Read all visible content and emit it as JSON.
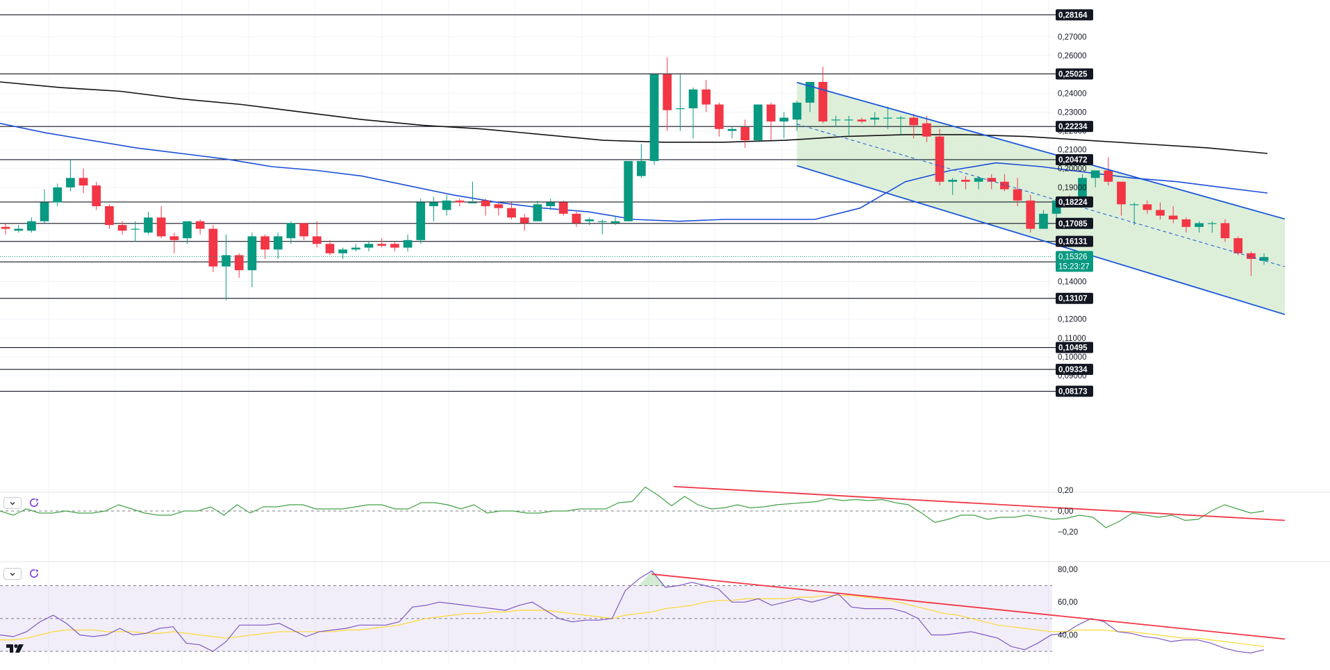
{
  "chart_data": [
    {
      "type": "candlestick",
      "ylim": [
        0.0775,
        0.2895
      ],
      "price_axis_ticks": [
        "0,27000",
        "0,26000",
        "0,24000",
        "0,23000",
        "0,22000",
        "0,21000",
        "0,20000",
        "0,19000",
        "0,14000",
        "0,12000",
        "0,11000",
        "0,10000",
        "0,09000"
      ],
      "levels": [
        {
          "value": 0.28164,
          "label": "0,28164"
        },
        {
          "value": 0.25025,
          "label": "0,25025"
        },
        {
          "value": 0.22234,
          "label": "0,22234"
        },
        {
          "value": 0.20472,
          "label": "0,20472"
        },
        {
          "value": 0.18224,
          "label": "0,18224"
        },
        {
          "value": 0.17085,
          "label": "0,17085"
        },
        {
          "value": 0.16131,
          "label": "0,16131"
        },
        {
          "value": 0.15045,
          "label": "0,15045"
        },
        {
          "value": 0.13107,
          "label": "0,13107"
        },
        {
          "value": 0.10495,
          "label": "0,10495"
        },
        {
          "value": 0.09334,
          "label": "0,09334"
        },
        {
          "value": 0.08173,
          "label": "0,08173"
        }
      ],
      "current_price": {
        "value": 0.15326,
        "label": "0,15326",
        "countdown": "15:23:27"
      },
      "candles": [
        [
          0.169,
          0.171,
          0.165,
          0.168
        ],
        [
          0.167,
          0.17,
          0.166,
          0.168
        ],
        [
          0.167,
          0.174,
          0.166,
          0.172
        ],
        [
          0.172,
          0.189,
          0.171,
          0.182
        ],
        [
          0.182,
          0.192,
          0.18,
          0.19
        ],
        [
          0.19,
          0.205,
          0.188,
          0.195
        ],
        [
          0.195,
          0.2,
          0.187,
          0.191
        ],
        [
          0.191,
          0.193,
          0.178,
          0.18
        ],
        [
          0.18,
          0.181,
          0.168,
          0.17
        ],
        [
          0.17,
          0.172,
          0.165,
          0.167
        ],
        [
          0.168,
          0.172,
          0.161,
          0.168
        ],
        [
          0.166,
          0.177,
          0.165,
          0.174
        ],
        [
          0.174,
          0.18,
          0.163,
          0.164
        ],
        [
          0.164,
          0.166,
          0.155,
          0.162
        ],
        [
          0.163,
          0.172,
          0.16,
          0.172
        ],
        [
          0.172,
          0.173,
          0.165,
          0.168
        ],
        [
          0.168,
          0.17,
          0.145,
          0.148
        ],
        [
          0.148,
          0.165,
          0.13,
          0.154
        ],
        [
          0.154,
          0.155,
          0.142,
          0.146
        ],
        [
          0.146,
          0.166,
          0.137,
          0.164
        ],
        [
          0.164,
          0.165,
          0.152,
          0.157
        ],
        [
          0.157,
          0.166,
          0.152,
          0.164
        ],
        [
          0.163,
          0.172,
          0.16,
          0.171
        ],
        [
          0.171,
          0.171,
          0.162,
          0.164
        ],
        [
          0.164,
          0.172,
          0.158,
          0.16
        ],
        [
          0.16,
          0.162,
          0.154,
          0.155
        ],
        [
          0.155,
          0.158,
          0.152,
          0.157
        ],
        [
          0.157,
          0.16,
          0.156,
          0.158
        ],
        [
          0.158,
          0.161,
          0.156,
          0.16
        ],
        [
          0.16,
          0.163,
          0.158,
          0.159
        ],
        [
          0.16,
          0.161,
          0.156,
          0.158
        ],
        [
          0.158,
          0.165,
          0.156,
          0.162
        ],
        [
          0.162,
          0.184,
          0.16,
          0.182
        ],
        [
          0.18,
          0.185,
          0.172,
          0.182
        ],
        [
          0.178,
          0.186,
          0.175,
          0.183
        ],
        [
          0.183,
          0.184,
          0.18,
          0.182
        ],
        [
          0.182,
          0.193,
          0.182,
          0.182
        ],
        [
          0.183,
          0.184,
          0.175,
          0.18
        ],
        [
          0.181,
          0.182,
          0.175,
          0.179
        ],
        [
          0.179,
          0.182,
          0.173,
          0.174
        ],
        [
          0.174,
          0.176,
          0.167,
          0.171
        ],
        [
          0.172,
          0.183,
          0.172,
          0.181
        ],
        [
          0.18,
          0.184,
          0.178,
          0.182
        ],
        [
          0.182,
          0.183,
          0.175,
          0.176
        ],
        [
          0.176,
          0.177,
          0.169,
          0.171
        ],
        [
          0.172,
          0.174,
          0.17,
          0.173
        ],
        [
          0.172,
          0.173,
          0.165,
          0.172
        ],
        [
          0.171,
          0.175,
          0.17,
          0.172
        ],
        [
          0.172,
          0.203,
          0.172,
          0.204
        ],
        [
          0.196,
          0.213,
          0.195,
          0.204
        ],
        [
          0.204,
          0.25,
          0.202,
          0.25
        ],
        [
          0.25,
          0.259,
          0.22,
          0.231
        ],
        [
          0.232,
          0.25,
          0.22,
          0.232
        ],
        [
          0.232,
          0.243,
          0.216,
          0.242
        ],
        [
          0.242,
          0.247,
          0.23,
          0.234
        ],
        [
          0.234,
          0.235,
          0.217,
          0.221
        ],
        [
          0.22,
          0.222,
          0.216,
          0.221
        ],
        [
          0.222,
          0.226,
          0.211,
          0.215
        ],
        [
          0.215,
          0.234,
          0.214,
          0.234
        ],
        [
          0.234,
          0.235,
          0.215,
          0.225
        ],
        [
          0.225,
          0.23,
          0.216,
          0.227
        ],
        [
          0.226,
          0.236,
          0.22,
          0.235
        ],
        [
          0.235,
          0.246,
          0.23,
          0.246
        ],
        [
          0.246,
          0.254,
          0.224,
          0.225
        ],
        [
          0.226,
          0.228,
          0.222,
          0.226
        ],
        [
          0.226,
          0.228,
          0.217,
          0.226
        ],
        [
          0.226,
          0.227,
          0.224,
          0.225
        ],
        [
          0.226,
          0.23,
          0.223,
          0.227
        ],
        [
          0.227,
          0.233,
          0.221,
          0.227
        ],
        [
          0.227,
          0.228,
          0.218,
          0.227
        ],
        [
          0.227,
          0.229,
          0.216,
          0.223
        ],
        [
          0.224,
          0.228,
          0.214,
          0.217
        ],
        [
          0.217,
          0.221,
          0.191,
          0.193
        ],
        [
          0.193,
          0.195,
          0.186,
          0.194
        ],
        [
          0.194,
          0.196,
          0.189,
          0.193
        ],
        [
          0.193,
          0.196,
          0.189,
          0.195
        ],
        [
          0.195,
          0.197,
          0.189,
          0.193
        ],
        [
          0.193,
          0.197,
          0.188,
          0.189
        ],
        [
          0.189,
          0.195,
          0.18,
          0.183
        ],
        [
          0.183,
          0.186,
          0.166,
          0.168
        ],
        [
          0.168,
          0.178,
          0.168,
          0.176
        ],
        [
          0.176,
          0.184,
          0.171,
          0.183
        ],
        [
          0.183,
          0.186,
          0.181,
          0.182
        ],
        [
          0.184,
          0.197,
          0.181,
          0.195
        ],
        [
          0.195,
          0.199,
          0.19,
          0.199
        ],
        [
          0.199,
          0.206,
          0.191,
          0.193
        ],
        [
          0.193,
          0.193,
          0.175,
          0.181
        ],
        [
          0.181,
          0.182,
          0.17,
          0.181
        ],
        [
          0.181,
          0.183,
          0.176,
          0.178
        ],
        [
          0.178,
          0.182,
          0.173,
          0.175
        ],
        [
          0.175,
          0.18,
          0.171,
          0.173
        ],
        [
          0.173,
          0.174,
          0.166,
          0.169
        ],
        [
          0.169,
          0.172,
          0.166,
          0.171
        ],
        [
          0.171,
          0.172,
          0.166,
          0.171
        ],
        [
          0.171,
          0.173,
          0.161,
          0.163
        ],
        [
          0.163,
          0.164,
          0.154,
          0.155
        ],
        [
          0.155,
          0.156,
          0.143,
          0.152
        ],
        [
          0.151,
          0.155,
          0.149,
          0.153
        ]
      ],
      "moving_averages": [
        {
          "color": "#1d4ed8",
          "values": [
            0.224,
            0.219,
            0.215,
            0.211,
            0.208,
            0.205,
            0.201,
            0.199,
            0.196,
            0.191,
            0.186,
            0.182,
            0.179,
            0.177,
            0.173,
            0.172,
            0.173,
            0.173,
            0.173,
            0.179,
            0.193,
            0.199,
            0.203,
            0.201,
            0.198,
            0.195,
            0.193,
            0.19,
            0.187
          ]
        },
        {
          "color": "#111111",
          "values": [
            0.246,
            0.243,
            0.241,
            0.237,
            0.234,
            0.23,
            0.226,
            0.223,
            0.221,
            0.218,
            0.215,
            0.214,
            0.214,
            0.215,
            0.217,
            0.218,
            0.218,
            0.217,
            0.215,
            0.213,
            0.211,
            0.208
          ]
        }
      ],
      "channel": {
        "color": "#1a56db",
        "fill": "#d7ecd1"
      }
    },
    {
      "type": "line",
      "ylim": [
        -0.24,
        0.24
      ],
      "yticks": [
        "0,20",
        "0,00",
        "−0,20"
      ],
      "values": [
        0.0,
        -0.04,
        0.02,
        -0.02,
        -0.02,
        0.0,
        -0.02,
        -0.02,
        0.0,
        0.06,
        0.02,
        -0.02,
        -0.04,
        -0.04,
        0.0,
        0.0,
        0.04,
        -0.04,
        0.06,
        -0.02,
        0.04,
        0.04,
        0.06,
        0.06,
        0.02,
        0.02,
        0.02,
        0.04,
        0.06,
        0.06,
        0.02,
        0.02,
        0.08,
        0.08,
        0.06,
        0.02,
        0.06,
        -0.02,
        0.0,
        0.0,
        -0.02,
        -0.02,
        0.0,
        0.0,
        0.02,
        0.02,
        0.02,
        0.08,
        0.09,
        0.23,
        0.15,
        0.05,
        0.14,
        0.06,
        0.02,
        0.03,
        0.06,
        0.03,
        0.04,
        0.06,
        0.07,
        0.08,
        0.09,
        0.12,
        0.1,
        0.11,
        0.1,
        0.11,
        0.08,
        0.06,
        -0.02,
        -0.11,
        -0.08,
        -0.04,
        -0.04,
        -0.08,
        -0.06,
        -0.06,
        -0.04,
        -0.06,
        -0.08,
        -0.07,
        -0.04,
        -0.06,
        -0.16,
        -0.1,
        -0.02,
        -0.04,
        -0.06,
        -0.04,
        -0.09,
        -0.08,
        0.0,
        0.06,
        0.02,
        -0.02,
        0.0
      ],
      "trendline": {
        "color": "#f23645"
      }
    },
    {
      "type": "line",
      "ylim": [
        25,
        85
      ],
      "yticks": [
        "80,00",
        "60,00",
        "40,00"
      ],
      "band": [
        30,
        70
      ],
      "rsi": [
        40,
        39,
        42,
        48,
        52,
        47,
        40,
        39,
        40,
        44,
        40,
        41,
        44,
        45,
        35,
        34,
        30,
        36,
        46,
        46,
        46,
        47,
        43,
        39,
        42,
        43,
        44,
        46,
        46,
        46,
        48,
        57,
        58,
        60,
        59,
        58,
        57,
        56,
        55,
        58,
        60,
        55,
        50,
        48,
        49,
        49,
        50,
        67,
        74,
        79,
        69,
        70,
        72,
        70,
        68,
        60,
        60,
        62,
        58,
        60,
        62,
        60,
        62,
        65,
        57,
        56,
        56,
        56,
        54,
        50,
        40,
        40,
        41,
        42,
        40,
        38,
        33,
        31,
        35,
        40,
        41,
        46,
        50,
        48,
        42,
        41,
        39,
        38,
        36,
        37,
        37,
        35,
        32,
        30,
        29,
        31
      ],
      "rsi_ma": [
        37,
        37,
        38,
        40,
        42,
        43,
        43,
        43,
        42,
        42,
        42,
        41,
        41,
        42,
        41,
        40,
        39,
        38,
        39,
        40,
        41,
        42,
        42,
        42,
        42,
        42,
        43,
        43,
        44,
        45,
        46,
        48,
        50,
        51,
        52,
        53,
        53,
        54,
        54,
        55,
        55,
        55,
        54,
        53,
        52,
        51,
        50,
        52,
        53,
        54,
        56,
        57,
        58,
        60,
        61,
        61,
        62,
        62,
        62,
        62,
        63,
        63,
        64,
        64,
        64,
        63,
        62,
        61,
        59,
        57,
        55,
        53,
        52,
        50,
        48,
        46,
        45,
        44,
        43,
        42,
        42,
        43,
        43,
        43,
        42,
        42,
        41,
        40,
        39,
        38,
        38,
        37,
        36,
        35,
        34,
        33
      ],
      "trendline": {
        "color": "#f23645"
      },
      "colors": {
        "rsi": "#7e57c2",
        "ma": "#fdd835"
      }
    }
  ],
  "pane_buttons": [
    "chevron-down-icon",
    "refresh-icon"
  ]
}
